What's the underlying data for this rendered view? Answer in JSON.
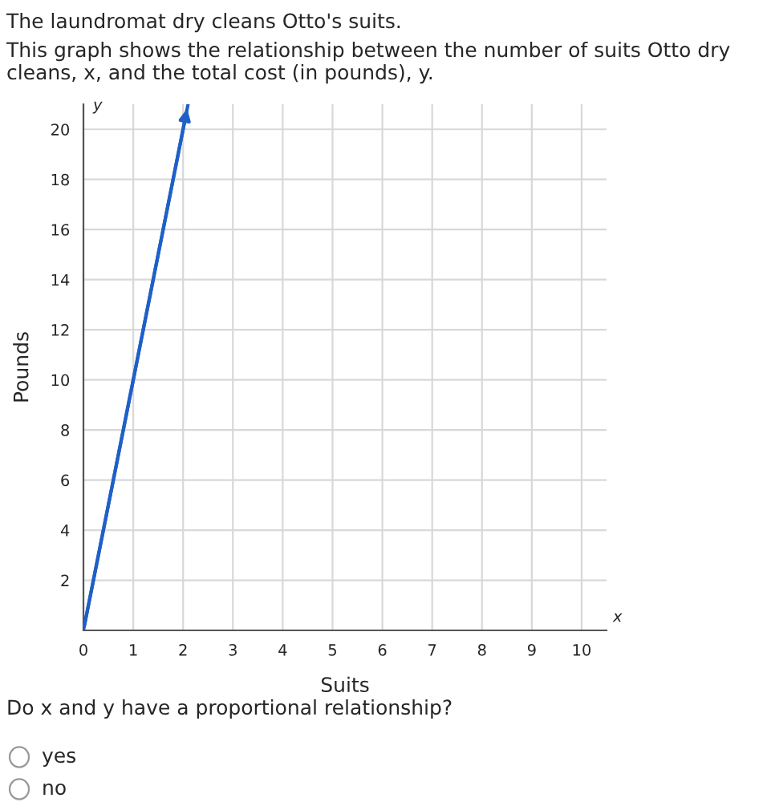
{
  "chart_data": {
    "type": "line",
    "title": "The laundromat dry cleans Otto's suits.",
    "subtitle": "This graph shows the relationship between the number of suits Otto dry cleans, x, and the total cost (in pounds), y.",
    "xlabel": "Suits",
    "ylabel": "Pounds",
    "x": [
      0,
      2.1
    ],
    "series": [
      {
        "color": "#1f5fc8",
        "values": [
          0,
          21
        ]
      }
    ],
    "xlim": [
      0,
      10.5
    ],
    "ylim": [
      0,
      21
    ],
    "xticks": [
      0,
      1,
      2,
      3,
      4,
      5,
      6,
      7,
      8,
      9,
      10
    ],
    "yticks": [
      2,
      4,
      6,
      8,
      10,
      12,
      14,
      16,
      18,
      20
    ],
    "grid": true,
    "marker": "none",
    "line_style": "solid",
    "annotations": [
      "x",
      "y",
      "Do x and y have a proportional relationship?",
      "yes",
      "no"
    ]
  }
}
